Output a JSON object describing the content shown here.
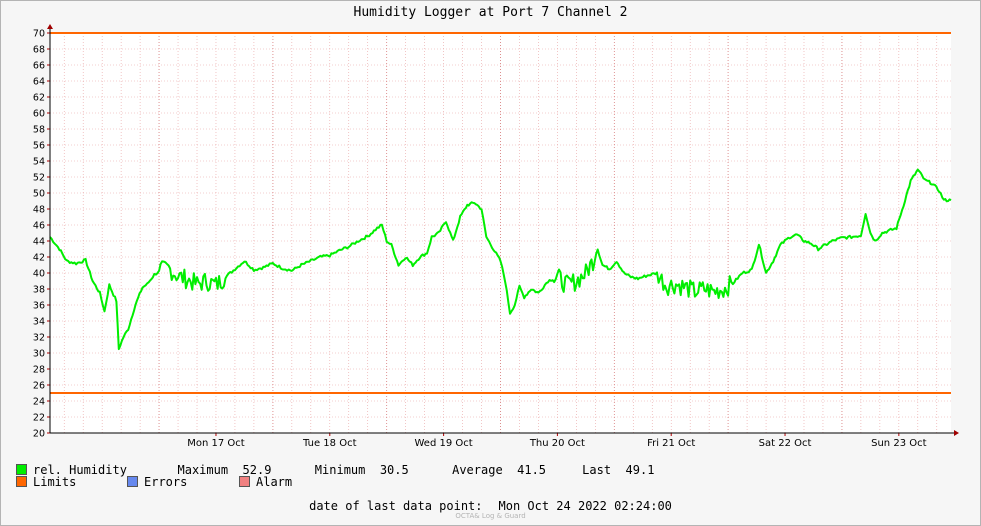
{
  "chart_data": {
    "type": "line",
    "title": "Humidity Logger at Port 7 Channel 2",
    "ylim": [
      20,
      70
    ],
    "y_ticks": [
      20,
      22,
      24,
      26,
      28,
      30,
      32,
      34,
      36,
      38,
      40,
      42,
      44,
      46,
      48,
      50,
      52,
      54,
      56,
      58,
      60,
      62,
      64,
      66,
      68,
      70
    ],
    "x_range_hours": [
      -23,
      167
    ],
    "x_ticks": [
      {
        "label": "Mon 17 Oct",
        "hour": 0
      },
      {
        "label": "Tue 18 Oct",
        "hour": 24
      },
      {
        "label": "Wed 19 Oct",
        "hour": 48
      },
      {
        "label": "Thu 20 Oct",
        "hour": 72
      },
      {
        "label": "Fri 21 Oct",
        "hour": 96
      },
      {
        "label": "Sat 22 Oct",
        "hour": 120
      },
      {
        "label": "Sun 23 Oct",
        "hour": 144
      }
    ],
    "grid": true,
    "limits": [
      25,
      70
    ],
    "series": [
      {
        "name": "rel. Humidity",
        "color": "#00ee00",
        "points": [
          [
            -23,
            44.5
          ],
          [
            -21,
            43
          ],
          [
            -19.5,
            41.5
          ],
          [
            -17.5,
            41.2
          ],
          [
            -15.5,
            41.6
          ],
          [
            -14,
            39
          ],
          [
            -12.5,
            37.5
          ],
          [
            -11.5,
            35.2
          ],
          [
            -10.5,
            38.5
          ],
          [
            -9,
            36.5
          ],
          [
            -8.5,
            30.5
          ],
          [
            -7.5,
            32
          ],
          [
            -6.5,
            33
          ],
          [
            -5,
            36
          ],
          [
            -3.5,
            38.2
          ],
          [
            -2.5,
            38.6
          ],
          [
            -1,
            39.8
          ],
          [
            0,
            40.2
          ],
          [
            2,
            40.6
          ],
          [
            4,
            39.6
          ],
          [
            6,
            39.2
          ],
          [
            8,
            38.6
          ],
          [
            10,
            39
          ],
          [
            12,
            38.5
          ],
          [
            14,
            39.5
          ],
          [
            16,
            40.5
          ],
          [
            18,
            41.5
          ],
          [
            20,
            40.4
          ],
          [
            22,
            40.7
          ],
          [
            24,
            41.2
          ],
          [
            26,
            40.6
          ],
          [
            28,
            40.3
          ],
          [
            30,
            41
          ],
          [
            32,
            41.5
          ],
          [
            34,
            42
          ],
          [
            36,
            42.2
          ],
          [
            38,
            42.8
          ],
          [
            40,
            43.3
          ],
          [
            42,
            44
          ],
          [
            44,
            44.6
          ],
          [
            46,
            45.6
          ],
          [
            47,
            46
          ],
          [
            48,
            44
          ],
          [
            49,
            43.5
          ],
          [
            50.5,
            41
          ],
          [
            52,
            42
          ],
          [
            53.5,
            41
          ],
          [
            55,
            42
          ],
          [
            56.5,
            42.5
          ],
          [
            57.5,
            44.5
          ],
          [
            59,
            45
          ],
          [
            60.5,
            46.5
          ],
          [
            62,
            44
          ],
          [
            63.5,
            47
          ],
          [
            65,
            48.5
          ],
          [
            66.5,
            48.8
          ],
          [
            68,
            48
          ],
          [
            69,
            44.5
          ],
          [
            70.5,
            43
          ],
          [
            72,
            41.5
          ],
          [
            73,
            39
          ],
          [
            74,
            35
          ],
          [
            75,
            36
          ],
          [
            76,
            38.3
          ],
          [
            77,
            37
          ],
          [
            78.5,
            38
          ],
          [
            80,
            37.5
          ],
          [
            82,
            39
          ],
          [
            84,
            39.5
          ],
          [
            86,
            38.5
          ],
          [
            88,
            39
          ],
          [
            90,
            40
          ],
          [
            91.5,
            41.5
          ],
          [
            92.5,
            43
          ],
          [
            93.5,
            41
          ],
          [
            95,
            40.5
          ],
          [
            96.5,
            41.5
          ],
          [
            98,
            40
          ],
          [
            99.5,
            39.5
          ],
          [
            101,
            39.3
          ],
          [
            103,
            39.7
          ],
          [
            105,
            40
          ],
          [
            107,
            38.4
          ],
          [
            109,
            38.6
          ],
          [
            111,
            38.2
          ],
          [
            113,
            37.7
          ],
          [
            115,
            38
          ],
          [
            117,
            37.7
          ],
          [
            119,
            38
          ],
          [
            121,
            38.7
          ],
          [
            123,
            40
          ],
          [
            125,
            40.4
          ],
          [
            126.5,
            43.6
          ],
          [
            128,
            40
          ],
          [
            129.5,
            41.5
          ],
          [
            131,
            43.5
          ],
          [
            133,
            44.5
          ],
          [
            134.5,
            44.8
          ],
          [
            136,
            44
          ],
          [
            137.5,
            43.7
          ],
          [
            139,
            43
          ],
          [
            140.5,
            43.5
          ],
          [
            142,
            44
          ],
          [
            144,
            44.4
          ],
          [
            146,
            44.5
          ],
          [
            148,
            44.7
          ],
          [
            149,
            47.5
          ],
          [
            150,
            45
          ],
          [
            151,
            44
          ],
          [
            152.5,
            45
          ],
          [
            154,
            45.3
          ],
          [
            155.5,
            45.6
          ],
          [
            157,
            48.5
          ],
          [
            158.5,
            51.5
          ],
          [
            160,
            52.9
          ],
          [
            161.5,
            51.6
          ],
          [
            163,
            51.2
          ],
          [
            164.5,
            50.3
          ],
          [
            165.5,
            49.1
          ],
          [
            167,
            49.1
          ]
        ]
      }
    ],
    "stats": {
      "label": "rel. Humidity",
      "max_label": "Maximum",
      "max": "52.9",
      "min_label": "Minimum",
      "min": "30.5",
      "avg_label": "Average",
      "avg": "41.5",
      "last_label": "Last",
      "last": "49.1"
    },
    "legend": [
      {
        "label": "rel. Humidity",
        "color": "#00ee00"
      },
      {
        "label": "Limits",
        "color": "#ff6600"
      },
      {
        "label": "Errors",
        "color": "#6688ee"
      },
      {
        "label": "Alarm",
        "color": "#f08080"
      }
    ],
    "last_point": {
      "label": "date of last data point:",
      "value": "Mon Oct 24 2022 02:24:00"
    }
  },
  "watermark": "OCTA& Log & Guard"
}
